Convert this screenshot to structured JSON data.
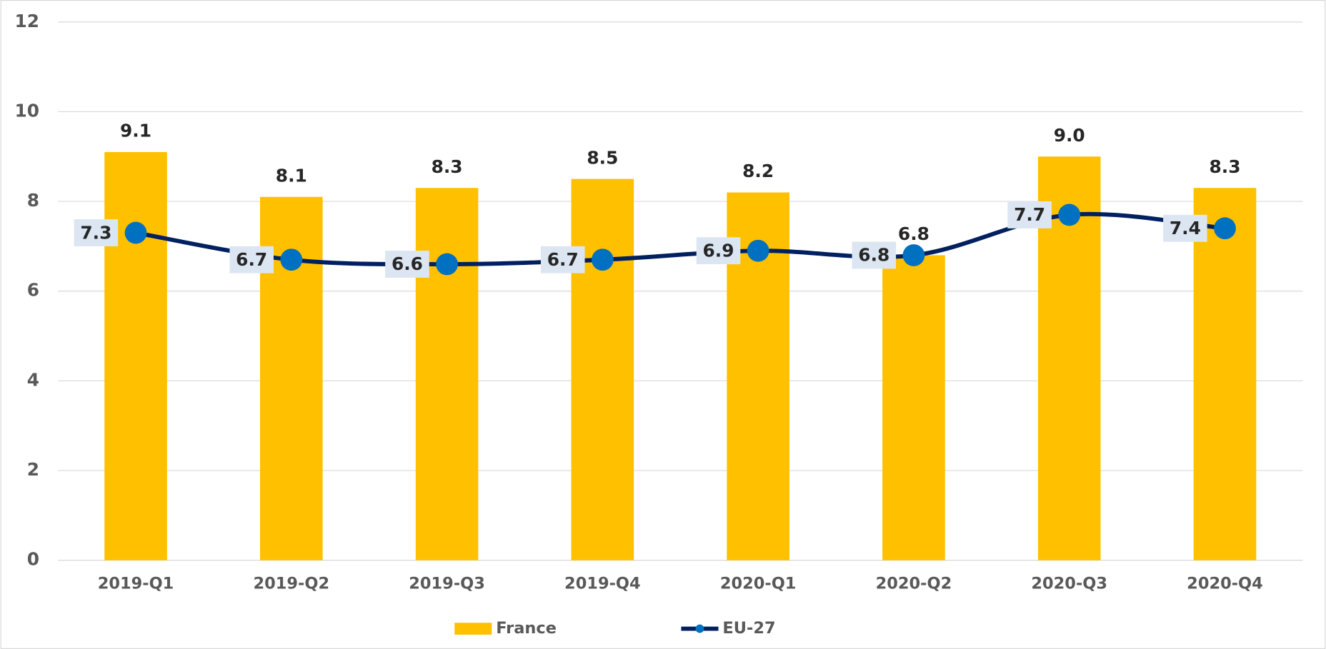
{
  "chart_data": {
    "type": "bar-line",
    "categories": [
      "2019-Q1",
      "2019-Q2",
      "2019-Q3",
      "2019-Q4",
      "2020-Q1",
      "2020-Q2",
      "2020-Q3",
      "2020-Q4"
    ],
    "series": [
      {
        "name": "France",
        "type": "bar",
        "color": "#ffc000",
        "values": [
          9.1,
          8.1,
          8.3,
          8.5,
          8.2,
          6.8,
          9.0,
          8.3
        ],
        "value_labels": [
          "9.1",
          "8.1",
          "8.3",
          "8.5",
          "8.2",
          "6.8",
          "9.0",
          "8.3"
        ]
      },
      {
        "name": "EU-27",
        "type": "line",
        "color": "#002060",
        "marker_color": "#0070c0",
        "values": [
          7.3,
          6.7,
          6.6,
          6.7,
          6.9,
          6.8,
          7.7,
          7.4
        ],
        "value_labels": [
          "7.3",
          "6.7",
          "6.6",
          "6.7",
          "6.9",
          "6.8",
          "7.7",
          "7.4"
        ]
      }
    ],
    "ylim": [
      0,
      12
    ],
    "yticks": [
      0,
      2,
      4,
      6,
      8,
      10,
      12
    ],
    "grid": true,
    "legend": "bottom"
  }
}
